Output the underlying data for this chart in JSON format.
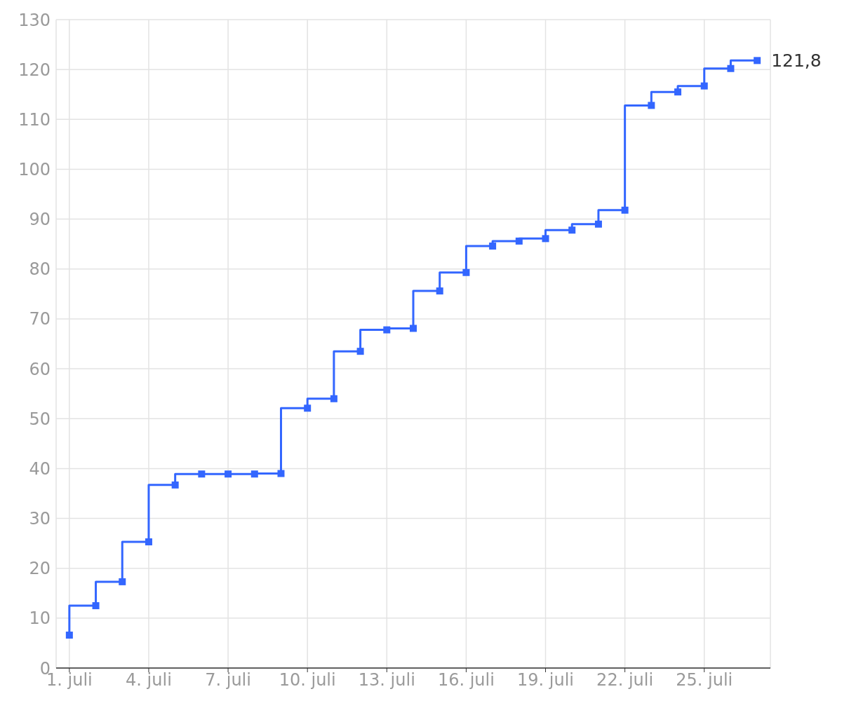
{
  "chart_data": {
    "type": "step",
    "x": [
      "--07-01",
      "--07-02",
      "--07-03",
      "--07-04",
      "--07-05",
      "--07-06",
      "--07-07",
      "--07-08",
      "--07-09",
      "--07-10",
      "--07-11",
      "--07-12",
      "--07-13",
      "--07-14",
      "--07-15",
      "--07-16",
      "--07-17",
      "--07-18",
      "--07-19",
      "--07-20",
      "--07-21",
      "--07-22",
      "--07-23",
      "--07-24",
      "--07-25",
      "--07-26",
      "--07-27"
    ],
    "series": [
      {
        "color": "#3366ff",
        "values": [
          6.6,
          12.5,
          17.3,
          25.3,
          36.7,
          38.9,
          38.9,
          38.9,
          39.0,
          52.1,
          54.0,
          63.5,
          67.8,
          68.1,
          75.6,
          79.3,
          84.6,
          85.6,
          86.1,
          87.8,
          89.0,
          91.8,
          112.8,
          115.5,
          116.7,
          120.2,
          121.8
        ],
        "value_labels": [
          null,
          null,
          null,
          null,
          null,
          null,
          null,
          null,
          null,
          null,
          null,
          null,
          null,
          null,
          null,
          null,
          null,
          null,
          null,
          null,
          null,
          null,
          null,
          null,
          null,
          null,
          "121,8"
        ]
      }
    ],
    "xlim": [
      "--06-30T12:00",
      "--07-27T12:00"
    ],
    "xticks": [
      {
        "value": "--07-01",
        "label": "1. juli"
      },
      {
        "value": "--07-04",
        "label": "4. juli"
      },
      {
        "value": "--07-07",
        "label": "7. juli"
      },
      {
        "value": "--07-10",
        "label": "10. juli"
      },
      {
        "value": "--07-13",
        "label": "13. juli"
      },
      {
        "value": "--07-16",
        "label": "16. juli"
      },
      {
        "value": "--07-19",
        "label": "19. juli"
      },
      {
        "value": "--07-22",
        "label": "22. juli"
      },
      {
        "value": "--07-25",
        "label": "25. juli"
      }
    ],
    "ylim": [
      0,
      130
    ],
    "yticks": [
      0,
      10,
      20,
      30,
      40,
      50,
      60,
      70,
      80,
      90,
      100,
      110,
      120,
      130
    ],
    "grid": true,
    "marker": "square",
    "line_style": "solid",
    "legend": false
  }
}
